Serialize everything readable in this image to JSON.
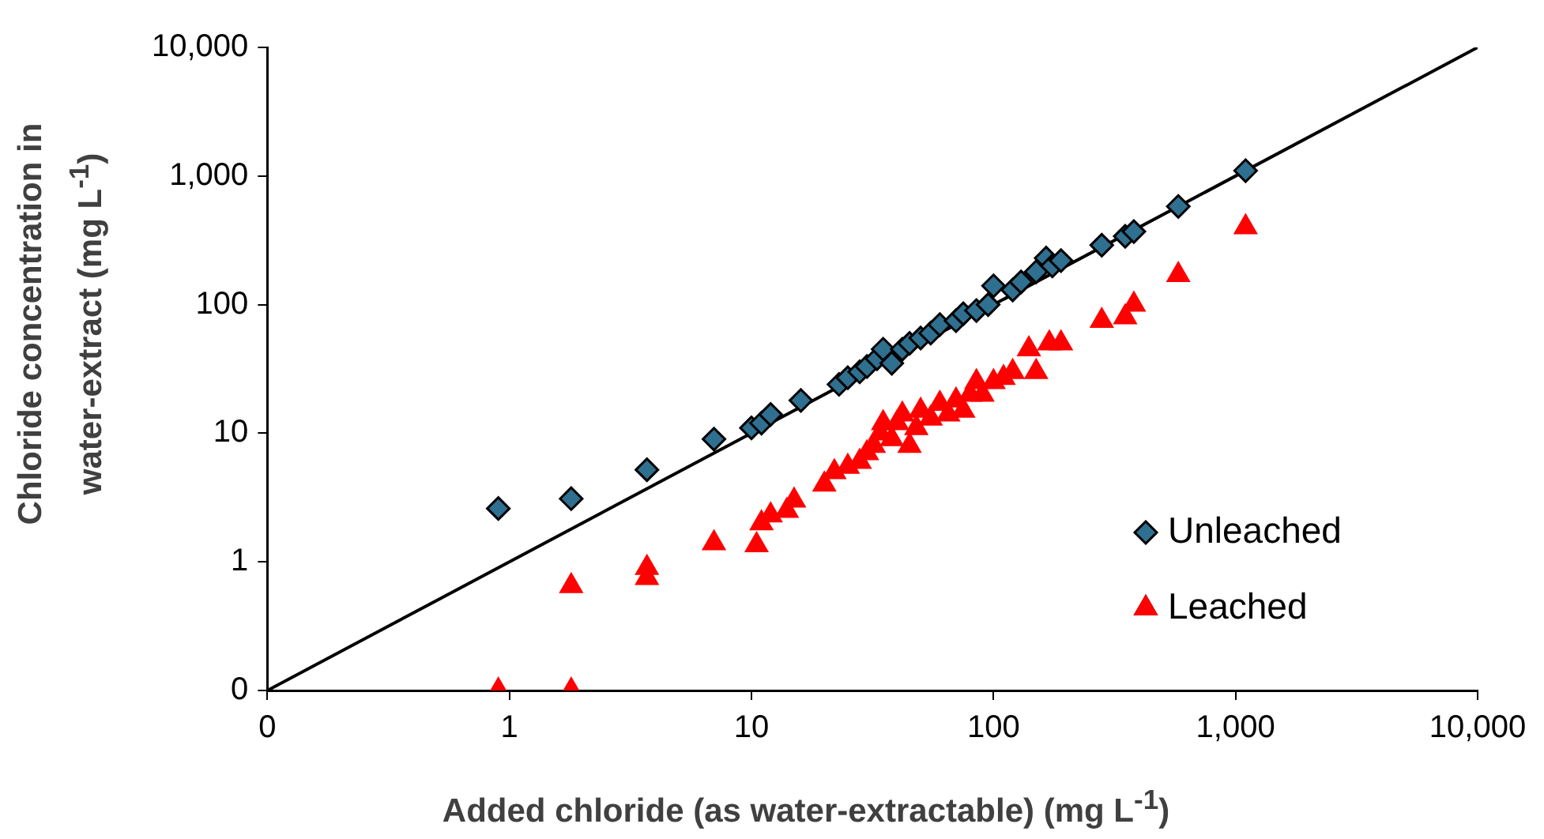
{
  "chart_data": {
    "type": "scatter",
    "xlabel": "Added chloride (as water-extractable) (mg L$^{-1}$)",
    "ylabel": "Chloride concentration in water-extract (mg L$^{-1}$)",
    "log": "xy",
    "grid": false,
    "legend": "bottom right",
    "xlim": [
      0.1,
      10000
    ],
    "ylim": [
      0.1,
      10000
    ],
    "xticks": [
      {
        "value": 0.1,
        "label": "0"
      },
      1,
      10,
      100,
      {
        "value": 1000,
        "label": "1,000"
      },
      {
        "value": 10000,
        "label": "10,000"
      }
    ],
    "yticks": [
      {
        "value": 0.1,
        "label": "0"
      },
      1,
      10,
      100,
      {
        "value": 1000,
        "label": "1,000"
      },
      {
        "value": 10000,
        "label": "10,000"
      }
    ],
    "series": [
      {
        "name": "Unleached",
        "color": "#2f6f8f",
        "marker": "diamond",
        "x": [
          0.9,
          1.8,
          3.7,
          7,
          10,
          11,
          12,
          16,
          23,
          25,
          28,
          30,
          33,
          35,
          38,
          42,
          45,
          50,
          55,
          60,
          70,
          75,
          85,
          95,
          100,
          120,
          130,
          150,
          165,
          175,
          190,
          280,
          350,
          380,
          580,
          1100
        ],
        "values": [
          2.6,
          3.1,
          5.2,
          9,
          11,
          12,
          14,
          18,
          24,
          27,
          30,
          33,
          38,
          45,
          35,
          45,
          50,
          55,
          60,
          70,
          75,
          85,
          90,
          100,
          140,
          130,
          150,
          180,
          230,
          200,
          220,
          290,
          340,
          370,
          580,
          1100
        ]
      },
      {
        "name": "Leached",
        "color": "#ff0000",
        "marker": "triangle",
        "x": [
          0.9,
          1.8,
          1.8,
          3.7,
          3.7,
          7,
          10.5,
          11,
          12,
          14,
          15,
          20,
          22,
          25,
          28,
          30,
          32,
          34,
          35,
          38,
          40,
          42,
          45,
          48,
          50,
          55,
          60,
          65,
          70,
          75,
          80,
          85,
          90,
          100,
          110,
          120,
          140,
          150,
          170,
          190,
          280,
          350,
          380,
          580,
          1100
        ],
        "values": [
          0.1,
          0.1,
          0.65,
          0.75,
          0.9,
          1.4,
          1.35,
          2,
          2.3,
          2.5,
          3,
          4,
          5,
          5.5,
          6,
          7,
          8,
          10,
          12,
          9,
          12,
          14,
          8,
          11,
          15,
          13,
          17,
          14,
          18,
          15,
          20,
          25,
          20,
          25,
          27,
          30,
          45,
          30,
          50,
          50,
          75,
          80,
          100,
          170,
          400
        ]
      },
      {
        "type": "line",
        "color": "#000000",
        "marker": "none",
        "x": [
          0.1,
          10000
        ],
        "values": [
          0.1,
          10000
        ]
      }
    ]
  }
}
